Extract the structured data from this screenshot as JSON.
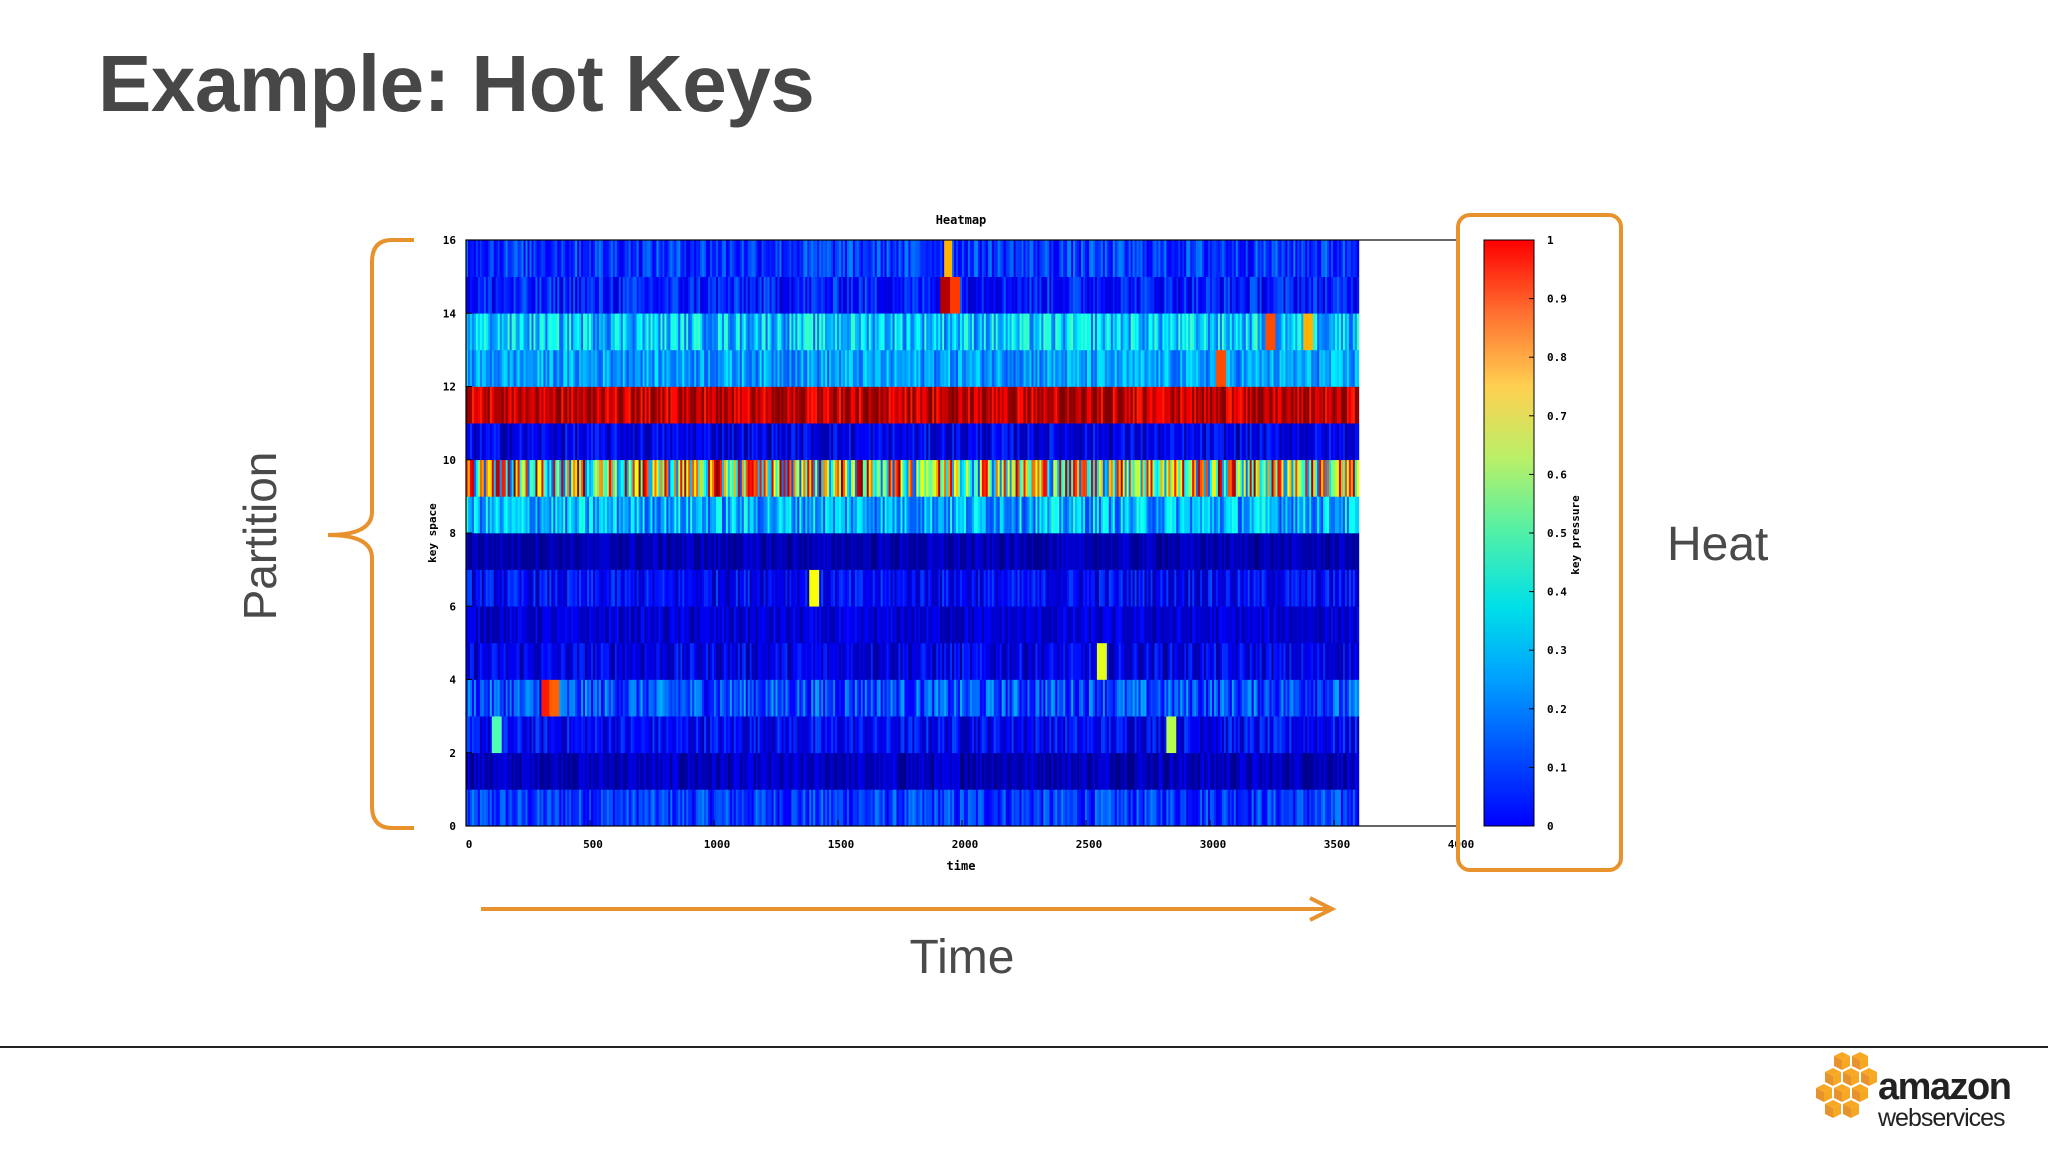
{
  "slide": {
    "title": "Example: Hot Keys",
    "annotations": {
      "partition": "Partition",
      "time": "Time",
      "heat": "Heat"
    },
    "accent_color": "#E8922E"
  },
  "logo": {
    "word": "amazon",
    "sub": "webservices",
    "colors": [
      "#F7A823",
      "#E8922E"
    ]
  },
  "chart_data": {
    "type": "heatmap",
    "title": "Heatmap",
    "xlabel": "time",
    "ylabel": "key space",
    "colorbar_label": "key pressure",
    "xlim": [
      0,
      4000
    ],
    "ylim": [
      0,
      16
    ],
    "x_ticks": [
      "0",
      "500",
      "1000",
      "1500",
      "2000",
      "2500",
      "3000",
      "3500",
      "4000"
    ],
    "y_ticks": [
      "0",
      "2",
      "4",
      "6",
      "8",
      "10",
      "12",
      "14",
      "16"
    ],
    "colorbar_range": [
      0,
      1
    ],
    "colorbar_ticks": [
      "0",
      "0.1",
      "0.2",
      "0.3",
      "0.4",
      "0.5",
      "0.6",
      "0.7",
      "0.8",
      "0.9",
      "1"
    ],
    "data_x_range": [
      0,
      3600
    ],
    "rows": [
      {
        "key": 0,
        "mean": 0.18,
        "spread": 0.08
      },
      {
        "key": 1,
        "mean": 0.06,
        "spread": 0.06
      },
      {
        "key": 2,
        "mean": 0.12,
        "spread": 0.08,
        "spikes": [
          {
            "t": 120,
            "v": 0.45
          },
          {
            "t": 2840,
            "v": 0.55
          }
        ]
      },
      {
        "key": 3,
        "mean": 0.2,
        "spread": 0.1,
        "spikes": [
          {
            "t": 320,
            "v": 0.85
          },
          {
            "t": 350,
            "v": 0.78
          }
        ]
      },
      {
        "key": 4,
        "mean": 0.1,
        "spread": 0.08,
        "spikes": [
          {
            "t": 2560,
            "v": 0.6
          }
        ]
      },
      {
        "key": 5,
        "mean": 0.08,
        "spread": 0.06
      },
      {
        "key": 6,
        "mean": 0.12,
        "spread": 0.08,
        "spikes": [
          {
            "t": 1400,
            "v": 0.62
          }
        ]
      },
      {
        "key": 7,
        "mean": 0.05,
        "spread": 0.05
      },
      {
        "key": 8,
        "mean": 0.3,
        "spread": 0.12
      },
      {
        "key": 9,
        "mean": 0.6,
        "spread": 0.4
      },
      {
        "key": 10,
        "mean": 0.1,
        "spread": 0.08
      },
      {
        "key": 11,
        "mean": 0.94,
        "spread": 0.1
      },
      {
        "key": 12,
        "mean": 0.28,
        "spread": 0.08,
        "spikes": [
          {
            "t": 3040,
            "v": 0.8
          }
        ]
      },
      {
        "key": 13,
        "mean": 0.33,
        "spread": 0.12,
        "spikes": [
          {
            "t": 3240,
            "v": 0.8
          },
          {
            "t": 3390,
            "v": 0.7
          }
        ]
      },
      {
        "key": 14,
        "mean": 0.15,
        "spread": 0.08,
        "spikes": [
          {
            "t": 1930,
            "v": 0.95
          },
          {
            "t": 1970,
            "v": 0.82
          }
        ]
      },
      {
        "key": 15,
        "mean": 0.18,
        "spread": 0.08,
        "spikes": [
          {
            "t": 1940,
            "v": 0.7
          }
        ]
      }
    ]
  }
}
